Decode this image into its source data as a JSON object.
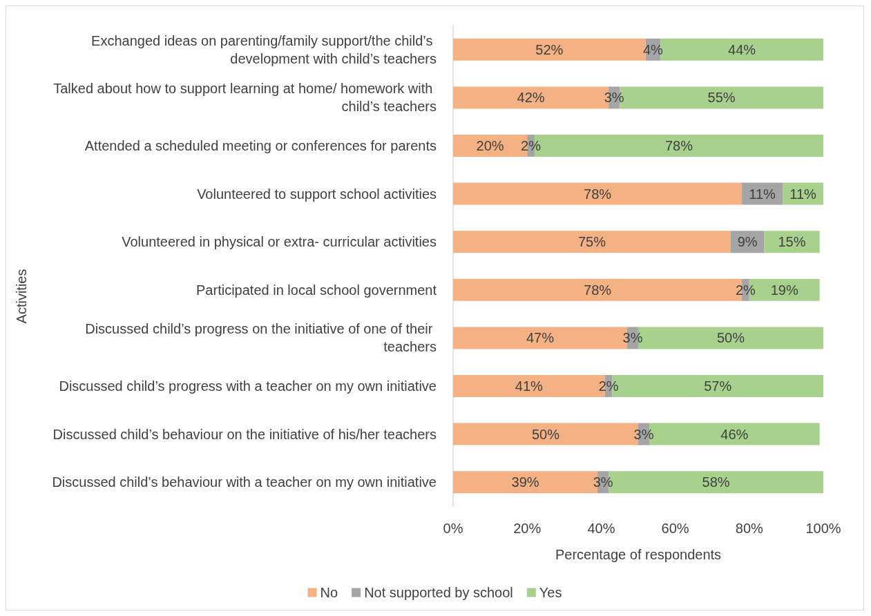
{
  "chart_data": {
    "type": "bar",
    "orientation": "horizontal",
    "stacked": true,
    "xlabel": "Percentage of respondents",
    "ylabel": "Activities",
    "categories": [
      "Exchanged ideas on parenting/family support/the child’s development with child’s teachers",
      "Talked about how to support learning at home/ homework with child’s teachers",
      "Attended a scheduled meeting or conferences for parents",
      "Volunteered to support school activities",
      "Volunteered in physical or extra- curricular activities",
      "Participated in local school government",
      "Discussed child’s progress on the initiative of one of their teachers",
      "Discussed child’s progress with a teacher on my own initiative",
      "Discussed child’s behaviour on the initiative of his/her teachers",
      "Discussed child’s behaviour with a teacher on my own initiative"
    ],
    "series": [
      {
        "name": "No",
        "color": "#f4b183",
        "values": [
          52,
          42,
          20,
          78,
          75,
          78,
          47,
          41,
          50,
          39
        ],
        "value_labels": [
          "52%",
          "42%",
          "20%",
          "78%",
          "75%",
          "78%",
          "47%",
          "41%",
          "50%",
          "39%"
        ]
      },
      {
        "name": "Not supported by school",
        "color": "#a5a5a5",
        "values": [
          4,
          3,
          2,
          11,
          9,
          2,
          3,
          2,
          3,
          3
        ],
        "value_labels": [
          "4%",
          "3%",
          "2%",
          "11%",
          "9%",
          "2%",
          "3%",
          "2%",
          "3%",
          "3%"
        ]
      },
      {
        "name": "Yes",
        "color": "#a9d18e",
        "values": [
          44,
          55,
          78,
          11,
          15,
          19,
          50,
          57,
          46,
          58
        ],
        "value_labels": [
          "44%",
          "55%",
          "78%",
          "11%",
          "15%",
          "19%",
          "50%",
          "57%",
          "46%",
          "58%"
        ]
      }
    ],
    "xlim": [
      0,
      100
    ],
    "xticks": [
      {
        "value": 0,
        "label": "0%"
      },
      {
        "value": 20,
        "label": "20%"
      },
      {
        "value": 40,
        "label": "40%"
      },
      {
        "value": 60,
        "label": "60%"
      },
      {
        "value": 80,
        "label": "80%"
      },
      {
        "value": 100,
        "label": "100%"
      }
    ],
    "grid": false,
    "legend": "bottom"
  }
}
